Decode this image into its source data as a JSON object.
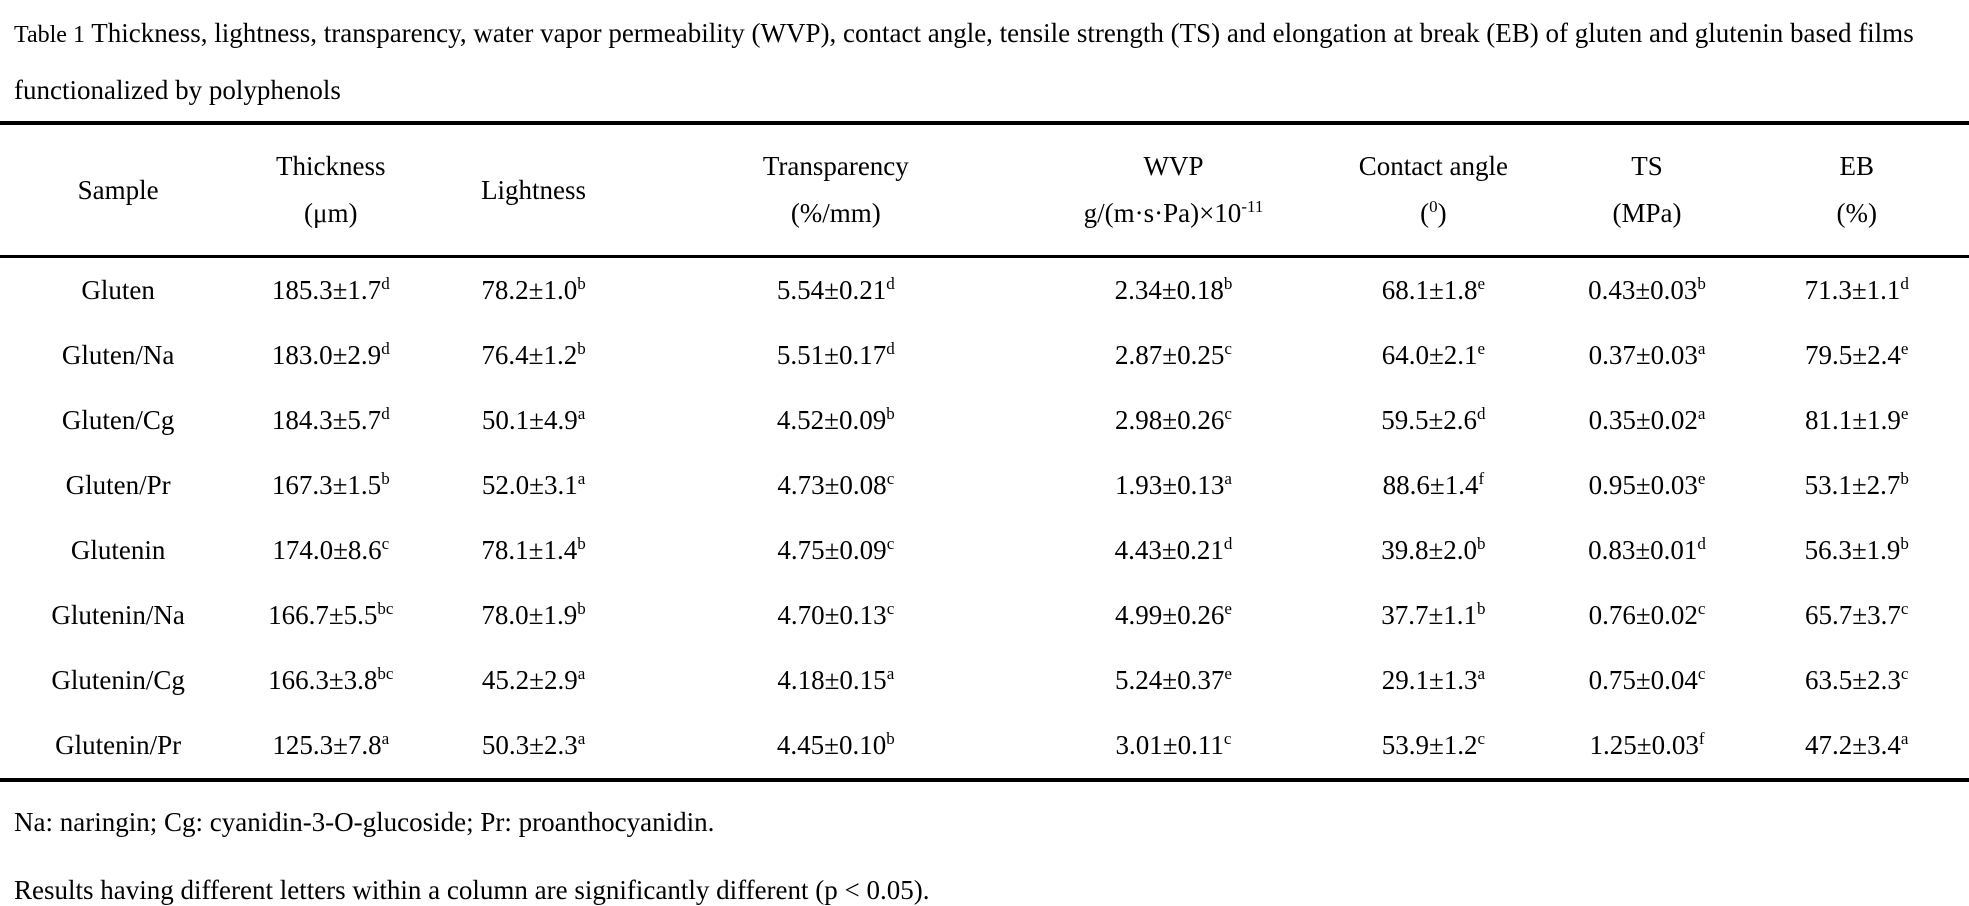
{
  "title": {
    "label": "Table 1",
    "text": "Thickness, lightness, transparency, water vapor permeability (WVP), contact angle, tensile strength (TS) and elongation at break (EB) of gluten and glutenin based films functionalized by polyphenols"
  },
  "table": {
    "columns": [
      {
        "name": "Sample"
      },
      {
        "name": "Thickness",
        "unit": {
          "pre": "(μm)"
        }
      },
      {
        "name": "Lightness"
      },
      {
        "name": "Transparency",
        "unit": {
          "pre": "(%/mm)"
        }
      },
      {
        "name": "WVP",
        "unit": {
          "pre": "g/(m·s·Pa)×10",
          "sup": "-11"
        }
      },
      {
        "name": "Contact angle",
        "unit": {
          "pre": "(",
          "sup": "0",
          "post": ")"
        }
      },
      {
        "name": "TS",
        "unit": {
          "pre": "(MPa)"
        }
      },
      {
        "name": "EB",
        "unit": {
          "pre": "(%)"
        }
      }
    ],
    "rows": [
      {
        "sample": "Gluten",
        "values": [
          [
            "185.3±1.7",
            "d"
          ],
          [
            "78.2±1.0",
            "b"
          ],
          [
            "5.54±0.21",
            "d"
          ],
          [
            "2.34±0.18",
            "b"
          ],
          [
            "68.1±1.8",
            "e"
          ],
          [
            "0.43±0.03",
            "b"
          ],
          [
            "71.3±1.1",
            "d"
          ]
        ]
      },
      {
        "sample": "Gluten/Na",
        "values": [
          [
            "183.0±2.9",
            "d"
          ],
          [
            "76.4±1.2",
            "b"
          ],
          [
            "5.51±0.17",
            "d"
          ],
          [
            "2.87±0.25",
            "c"
          ],
          [
            "64.0±2.1",
            "e"
          ],
          [
            "0.37±0.03",
            "a"
          ],
          [
            "79.5±2.4",
            "e"
          ]
        ]
      },
      {
        "sample": "Gluten/Cg",
        "values": [
          [
            "184.3±5.7",
            "d"
          ],
          [
            "50.1±4.9",
            "a"
          ],
          [
            "4.52±0.09",
            "b"
          ],
          [
            "2.98±0.26",
            "c"
          ],
          [
            "59.5±2.6",
            "d"
          ],
          [
            "0.35±0.02",
            "a"
          ],
          [
            "81.1±1.9",
            "e"
          ]
        ]
      },
      {
        "sample": "Gluten/Pr",
        "values": [
          [
            "167.3±1.5",
            "b"
          ],
          [
            "52.0±3.1",
            "a"
          ],
          [
            "4.73±0.08",
            "c"
          ],
          [
            "1.93±0.13",
            "a"
          ],
          [
            "88.6±1.4",
            "f"
          ],
          [
            "0.95±0.03",
            "e"
          ],
          [
            "53.1±2.7",
            "b"
          ]
        ]
      },
      {
        "sample": "Glutenin",
        "values": [
          [
            "174.0±8.6",
            "c"
          ],
          [
            "78.1±1.4",
            "b"
          ],
          [
            "4.75±0.09",
            "c"
          ],
          [
            "4.43±0.21",
            "d"
          ],
          [
            "39.8±2.0",
            "b"
          ],
          [
            "0.83±0.01",
            "d"
          ],
          [
            "56.3±1.9",
            "b"
          ]
        ]
      },
      {
        "sample": "Glutenin/Na",
        "values": [
          [
            "166.7±5.5",
            "bc"
          ],
          [
            "78.0±1.9",
            "b"
          ],
          [
            "4.70±0.13",
            "c"
          ],
          [
            "4.99±0.26",
            "e"
          ],
          [
            "37.7±1.1",
            "b"
          ],
          [
            "0.76±0.02",
            "c"
          ],
          [
            "65.7±3.7",
            "c"
          ]
        ]
      },
      {
        "sample": "Glutenin/Cg",
        "values": [
          [
            "166.3±3.8",
            "bc"
          ],
          [
            "45.2±2.9",
            "a"
          ],
          [
            "4.18±0.15",
            "a"
          ],
          [
            "5.24±0.37",
            "e"
          ],
          [
            "29.1±1.3",
            "a"
          ],
          [
            "0.75±0.04",
            "c"
          ],
          [
            "63.5±2.3",
            "c"
          ]
        ]
      },
      {
        "sample": "Glutenin/Pr",
        "values": [
          [
            "125.3±7.8",
            "a"
          ],
          [
            "50.3±2.3",
            "a"
          ],
          [
            "4.45±0.10",
            "b"
          ],
          [
            "3.01±0.11",
            "c"
          ],
          [
            "53.9±1.2",
            "c"
          ],
          [
            "1.25±0.03",
            "f"
          ],
          [
            "47.2±3.4",
            "a"
          ]
        ]
      }
    ]
  },
  "footnotes": [
    "Na: naringin; Cg: cyanidin-3-O-glucoside; Pr: proanthocyanidin.",
    "Results having different letters within a column are significantly different (p < 0.05)."
  ]
}
